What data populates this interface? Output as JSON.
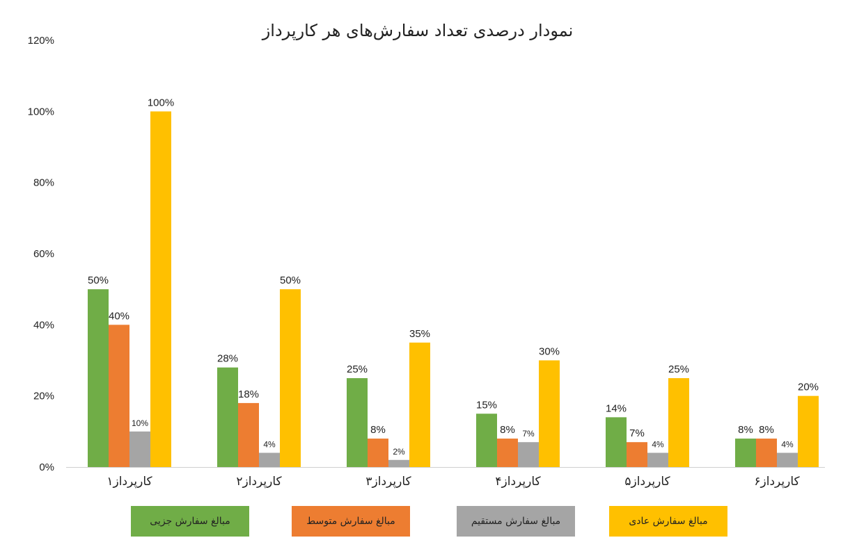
{
  "chart_data": {
    "type": "bar",
    "title": "نمودار درصدی تعداد سفارش‌های هر کارپرداز",
    "categories": [
      "کارپرداز۱",
      "کارپرداز۲",
      "کارپرداز۳",
      "کارپرداز۴",
      "کارپرداز۵",
      "کارپرداز۶"
    ],
    "series": [
      {
        "name": "مبالغ سفارش جزیی",
        "color": "#70ad47",
        "values": [
          50,
          28,
          25,
          15,
          14,
          8
        ]
      },
      {
        "name": "مبالغ سفارش متوسط",
        "color": "#ed7d31",
        "values": [
          40,
          18,
          8,
          8,
          7,
          8
        ]
      },
      {
        "name": "مبالغ سفارش مستقیم",
        "color": "#a5a5a5",
        "values": [
          10,
          4,
          2,
          7,
          4,
          4
        ]
      },
      {
        "name": "مبالغ سفارش عادی",
        "color": "#ffc000",
        "values": [
          100,
          50,
          35,
          30,
          25,
          20
        ]
      }
    ],
    "data_labels": [
      [
        "50%",
        "28%",
        "25%",
        "15%",
        "14%",
        "8%"
      ],
      [
        "40%",
        "18%",
        "8%",
        "8%",
        "7%",
        "8%"
      ],
      [
        "10%",
        "4%",
        "2%",
        "7%",
        "4%",
        "4%"
      ],
      [
        "100%",
        "50%",
        "35%",
        "30%",
        "25%",
        "20%"
      ]
    ],
    "yticks": [
      "0%",
      "20%",
      "40%",
      "60%",
      "80%",
      "100%",
      "120%"
    ],
    "ylim": [
      0,
      120
    ],
    "xlabel": "",
    "ylabel": "",
    "grid": false,
    "legend_position": "bottom"
  }
}
